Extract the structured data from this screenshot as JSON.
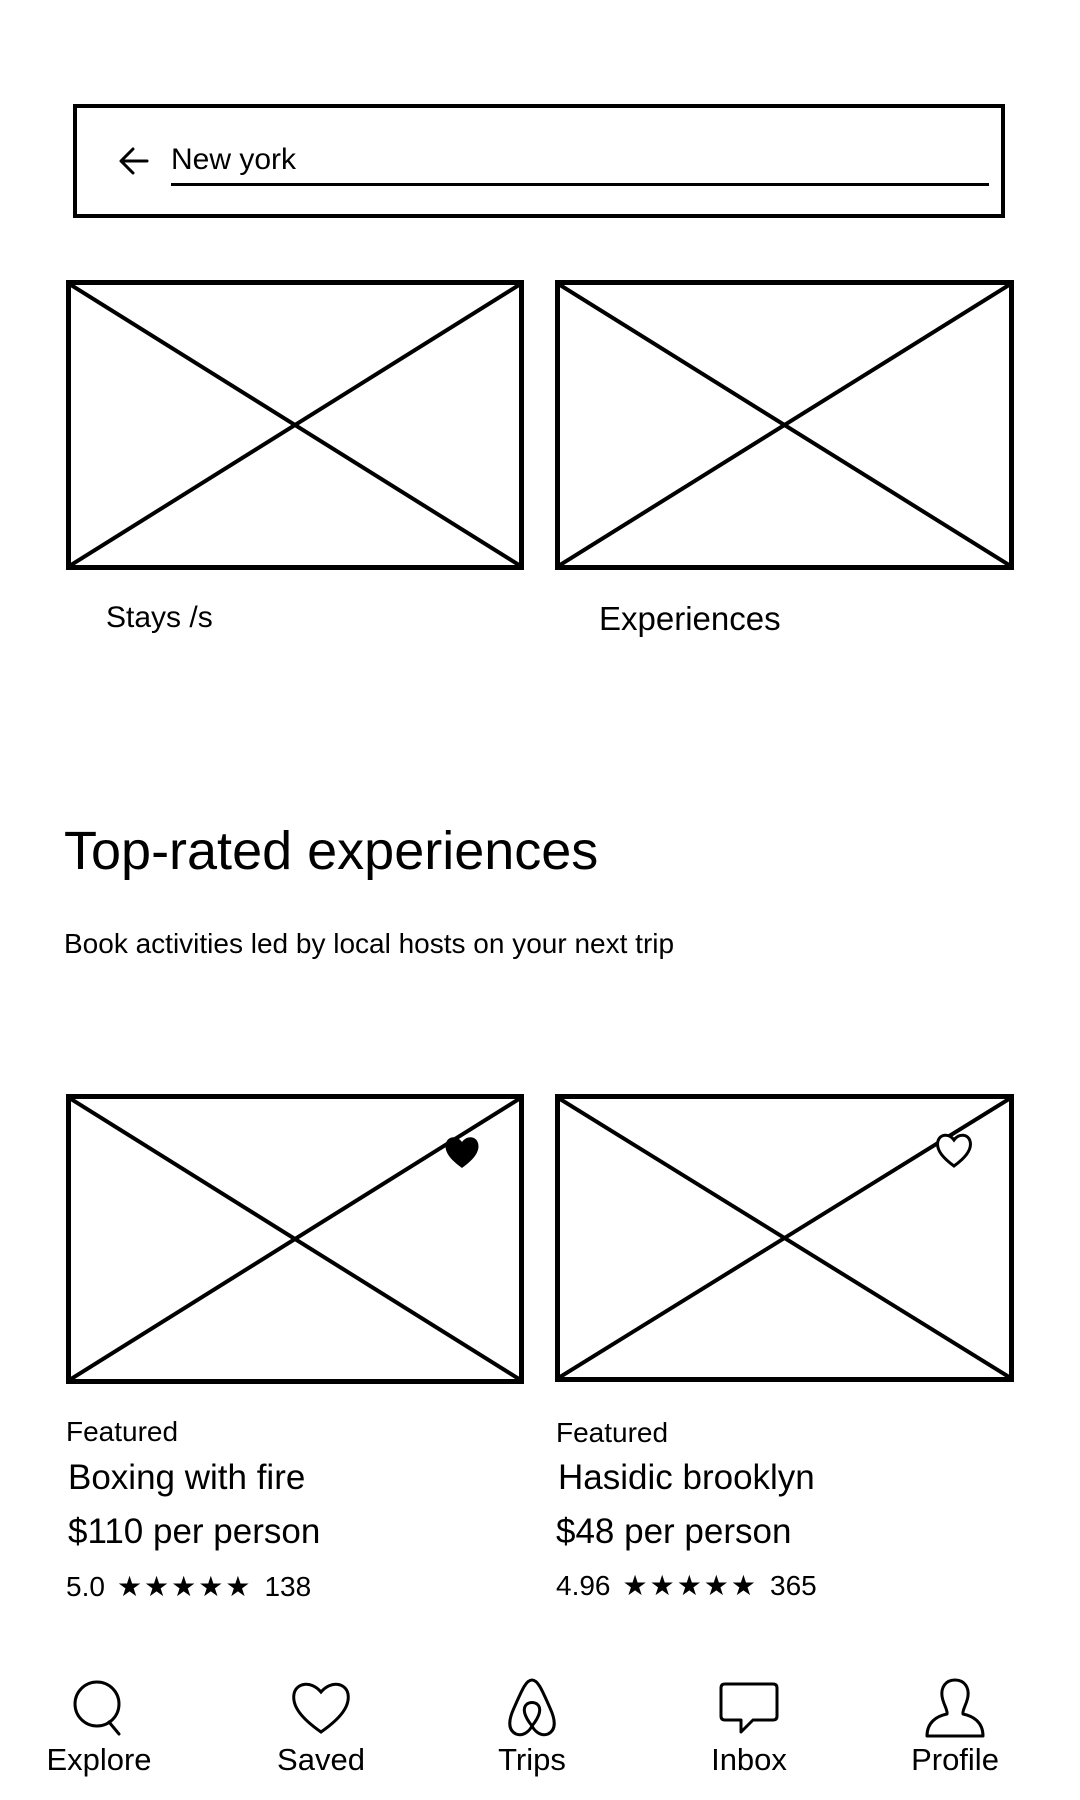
{
  "search": {
    "value": "New york",
    "back_icon": "back-arrow-icon"
  },
  "categories": [
    {
      "label": "Stays /s"
    },
    {
      "label": "Experiences"
    }
  ],
  "section": {
    "title": "Top-rated experiences",
    "subtitle": "Book activities led by local hosts on your next trip"
  },
  "experiences": [
    {
      "tag": "Featured",
      "title": "Boxing with fire",
      "price": "$110 per person",
      "rating": "5.0",
      "stars": "★★★★★",
      "reviews": "138",
      "favorited": true
    },
    {
      "tag": "Featured",
      "title": "Hasidic brooklyn",
      "price": "$48 per person",
      "rating": "4.96",
      "stars": "★★★★★",
      "reviews": "365",
      "favorited": false
    }
  ],
  "nav": [
    {
      "label": "Explore",
      "icon": "search-icon"
    },
    {
      "label": "Saved",
      "icon": "heart-icon"
    },
    {
      "label": "Trips",
      "icon": "trips-logo-icon"
    },
    {
      "label": "Inbox",
      "icon": "chat-bubble-icon"
    },
    {
      "label": "Profile",
      "icon": "profile-icon"
    }
  ]
}
